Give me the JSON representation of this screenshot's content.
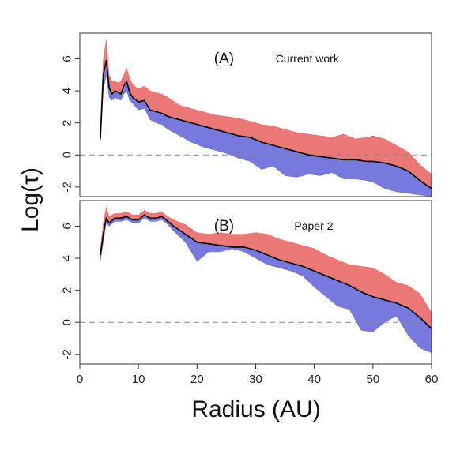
{
  "chart_data": {
    "type": "area",
    "xlabel": "Radius (AU)",
    "ylabel": "Log(τ)",
    "xlim": [
      0,
      60
    ],
    "xticks": [
      "0",
      "10",
      "20",
      "30",
      "40",
      "50",
      "60"
    ],
    "colors": {
      "upper": "#e8605e",
      "lower": "#5f62d8",
      "median": "#000000",
      "reference": "#888888"
    },
    "panels": [
      {
        "label": "(A)",
        "annotation": "Current work",
        "ylim": [
          -2.6,
          7.6
        ],
        "yticks": [
          "-2",
          "0",
          "2",
          "4",
          "6"
        ],
        "reference_line_y": 0,
        "series": [
          {
            "role": "median",
            "x": [
              3.5,
              4.0,
              4.5,
              5.0,
              5.5,
              6.0,
              6.5,
              7.0,
              7.5,
              8.0,
              8.5,
              9.0,
              10.0,
              11.0,
              12.0,
              13.0,
              14.0,
              15.0,
              17.0,
              19.0,
              21.0,
              23.0,
              25.0,
              27.0,
              29.0,
              31.0,
              33.0,
              35.0,
              37.0,
              39.0,
              41.0,
              43.0,
              45.0,
              47.0,
              49.0,
              50.0,
              52.0,
              54.0,
              56.0,
              58.0,
              60.0
            ],
            "y": [
              1.0,
              5.0,
              5.9,
              4.2,
              3.8,
              4.0,
              3.9,
              3.8,
              4.3,
              4.6,
              3.9,
              3.6,
              3.3,
              3.4,
              2.8,
              2.7,
              2.6,
              2.4,
              2.2,
              2.0,
              1.8,
              1.6,
              1.4,
              1.2,
              1.1,
              0.8,
              0.6,
              0.4,
              0.2,
              0.0,
              -0.1,
              -0.2,
              -0.3,
              -0.3,
              -0.4,
              -0.4,
              -0.5,
              -0.7,
              -1.0,
              -1.6,
              -2.1
            ]
          },
          {
            "role": "upper",
            "x": [
              3.5,
              4.0,
              4.5,
              5.0,
              5.5,
              6.0,
              6.5,
              7.0,
              7.5,
              8.0,
              8.5,
              9.0,
              10.0,
              11.0,
              12.0,
              13.0,
              14.0,
              15.0,
              17.0,
              19.0,
              21.0,
              23.0,
              25.0,
              27.0,
              29.0,
              31.0,
              33.0,
              35.0,
              37.0,
              39.0,
              41.0,
              43.0,
              45.0,
              47.0,
              49.0,
              50.0,
              52.0,
              54.0,
              56.0,
              58.0,
              60.0
            ],
            "y": [
              2.0,
              6.0,
              7.2,
              5.0,
              4.6,
              4.6,
              4.5,
              4.6,
              5.0,
              5.4,
              4.8,
              4.4,
              4.1,
              4.3,
              4.0,
              3.9,
              3.8,
              3.6,
              3.1,
              2.9,
              2.7,
              2.5,
              2.4,
              2.3,
              2.1,
              1.9,
              1.8,
              1.6,
              1.4,
              1.3,
              1.2,
              1.1,
              1.3,
              1.0,
              1.1,
              1.2,
              1.0,
              0.6,
              0.2,
              -0.6,
              -1.2
            ]
          },
          {
            "role": "lower",
            "x": [
              3.5,
              4.0,
              4.5,
              5.0,
              5.5,
              6.0,
              6.5,
              7.0,
              7.5,
              8.0,
              8.5,
              9.0,
              10.0,
              11.0,
              12.0,
              13.0,
              14.0,
              15.0,
              17.0,
              19.0,
              21.0,
              23.0,
              25.0,
              27.0,
              29.0,
              31.0,
              33.0,
              35.0,
              37.0,
              39.0,
              41.0,
              43.0,
              45.0,
              47.0,
              49.0,
              50.0,
              52.0,
              54.0,
              56.0,
              58.0,
              60.0
            ],
            "y": [
              0.8,
              4.0,
              5.0,
              3.6,
              3.4,
              3.6,
              3.5,
              3.4,
              3.8,
              4.0,
              3.4,
              3.2,
              2.8,
              2.9,
              2.2,
              2.0,
              1.9,
              1.6,
              1.2,
              0.8,
              0.5,
              0.3,
              0.1,
              -0.2,
              -0.4,
              -0.9,
              -0.7,
              -1.3,
              -1.4,
              -1.2,
              -1.3,
              -1.1,
              -1.5,
              -1.5,
              -1.6,
              -1.7,
              -2.1,
              -2.3,
              -2.4,
              -2.5,
              -2.6
            ]
          }
        ]
      },
      {
        "label": "(B)",
        "annotation": "Paper 2",
        "ylim": [
          -2.6,
          7.6
        ],
        "yticks": [
          "-2",
          "0",
          "2",
          "4",
          "6"
        ],
        "reference_line_y": 0,
        "series": [
          {
            "role": "median",
            "x": [
              3.5,
              4.0,
              4.5,
              5.0,
              6.0,
              7.0,
              8.0,
              9.0,
              10.0,
              11.0,
              12.0,
              13.0,
              14.0,
              15.0,
              16.0,
              18.0,
              20.0,
              22.0,
              24.0,
              26.0,
              28.0,
              30.0,
              32.0,
              34.0,
              36.0,
              38.0,
              40.0,
              42.0,
              44.0,
              46.0,
              48.0,
              50.0,
              52.0,
              54.0,
              56.0,
              58.0,
              60.0
            ],
            "y": [
              4.2,
              5.5,
              6.5,
              6.2,
              6.5,
              6.5,
              6.6,
              6.4,
              6.4,
              6.7,
              6.5,
              6.5,
              6.6,
              6.3,
              6.0,
              5.5,
              5.0,
              4.9,
              4.8,
              4.7,
              4.7,
              4.5,
              4.2,
              3.9,
              3.7,
              3.5,
              3.2,
              2.9,
              2.6,
              2.3,
              1.9,
              1.6,
              1.4,
              1.2,
              0.9,
              0.3,
              -0.4
            ]
          },
          {
            "role": "upper",
            "x": [
              3.5,
              4.0,
              4.5,
              5.0,
              6.0,
              7.0,
              8.0,
              9.0,
              10.0,
              11.0,
              12.0,
              13.0,
              14.0,
              15.0,
              16.0,
              18.0,
              20.0,
              22.0,
              24.0,
              26.0,
              28.0,
              30.0,
              32.0,
              34.0,
              36.0,
              38.0,
              40.0,
              42.0,
              44.0,
              46.0,
              48.0,
              50.0,
              52.0,
              54.0,
              56.0,
              58.0,
              60.0
            ],
            "y": [
              4.6,
              6.2,
              7.2,
              6.6,
              6.8,
              6.8,
              6.9,
              6.7,
              6.7,
              7.0,
              6.8,
              6.8,
              6.9,
              6.6,
              6.4,
              6.1,
              5.6,
              5.5,
              5.6,
              5.5,
              5.5,
              5.6,
              5.5,
              5.2,
              5.0,
              4.8,
              4.6,
              4.2,
              3.9,
              3.6,
              3.5,
              3.4,
              3.0,
              2.5,
              2.3,
              1.8,
              0.6
            ]
          },
          {
            "role": "lower",
            "x": [
              3.5,
              4.0,
              4.5,
              5.0,
              6.0,
              7.0,
              8.0,
              9.0,
              10.0,
              11.0,
              12.0,
              13.0,
              14.0,
              15.0,
              16.0,
              18.0,
              20.0,
              22.0,
              24.0,
              26.0,
              28.0,
              30.0,
              32.0,
              34.0,
              36.0,
              38.0,
              40.0,
              42.0,
              44.0,
              46.0,
              48.0,
              50.0,
              52.0,
              54.0,
              56.0,
              58.0,
              60.0
            ],
            "y": [
              3.8,
              5.0,
              6.2,
              6.0,
              6.3,
              6.3,
              6.4,
              6.2,
              6.2,
              6.5,
              6.3,
              6.3,
              6.4,
              6.1,
              5.7,
              5.0,
              3.8,
              4.4,
              4.4,
              4.6,
              4.4,
              4.0,
              3.6,
              3.4,
              3.2,
              2.9,
              2.2,
              1.6,
              1.0,
              0.8,
              -0.5,
              -0.6,
              0.0,
              0.4,
              -0.8,
              -1.6,
              -1.9
            ]
          }
        ]
      }
    ]
  }
}
